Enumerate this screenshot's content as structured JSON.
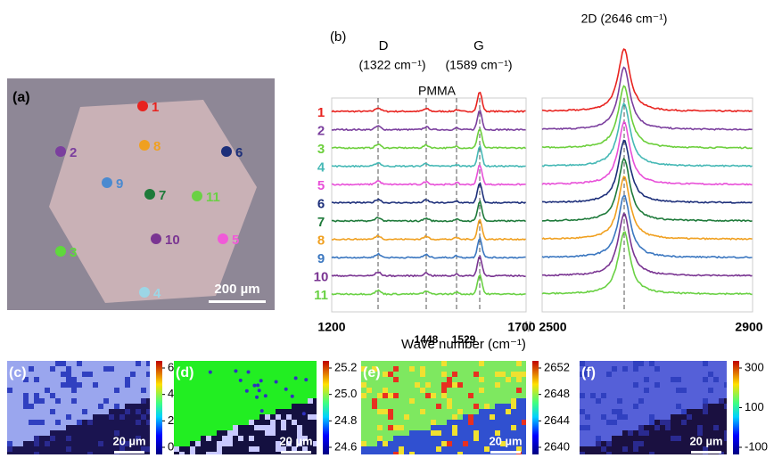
{
  "panel_a": {
    "label": "(a)",
    "scale_bar": "200 µm",
    "points": [
      {
        "label": "1",
        "color": "#e8231f"
      },
      {
        "label": "2",
        "color": "#7b3f9e"
      },
      {
        "label": "3",
        "color": "#5fd83c"
      },
      {
        "label": "4",
        "color": "#9cd6e6"
      },
      {
        "label": "5",
        "color": "#f05ad8"
      },
      {
        "label": "6",
        "color": "#1d2f7a"
      },
      {
        "label": "7",
        "color": "#1e7a3a"
      },
      {
        "label": "8",
        "color": "#f0a020"
      },
      {
        "label": "9",
        "color": "#4a8ad0"
      },
      {
        "label": "10",
        "color": "#7a3592"
      },
      {
        "label": "11",
        "color": "#6ad144"
      }
    ]
  },
  "panel_b": {
    "label": "(b)",
    "peak_d": {
      "name": "D",
      "position": "(1322 cm⁻¹)"
    },
    "peak_g": {
      "name": "G",
      "position": "(1589 cm⁻¹)"
    },
    "peak_2d": "2D (2646 cm⁻¹)",
    "pmma": "PMMA",
    "x_labels": [
      "1200",
      "1448",
      "1529",
      "1700",
      "2500",
      "2900"
    ],
    "x_title": "Wave number (cm⁻¹)",
    "traces": [
      {
        "label": "1",
        "color": "#e8231f"
      },
      {
        "label": "2",
        "color": "#7b3f9e"
      },
      {
        "label": "3",
        "color": "#6ccf3c"
      },
      {
        "label": "4",
        "color": "#45b8b5"
      },
      {
        "label": "5",
        "color": "#e84fd8"
      },
      {
        "label": "6",
        "color": "#1d2f7a"
      },
      {
        "label": "7",
        "color": "#1e7a3a"
      },
      {
        "label": "8",
        "color": "#f0a020"
      },
      {
        "label": "9",
        "color": "#3b77c0"
      },
      {
        "label": "10",
        "color": "#7a3592"
      },
      {
        "label": "11",
        "color": "#6ad144"
      }
    ]
  },
  "maps": [
    {
      "label": "(c)",
      "scale_bar": "20 µm",
      "ticks": [
        "6",
        "4",
        "2",
        "0"
      ],
      "top_color": "#9aa6ee",
      "low_color": "#1a1450"
    },
    {
      "label": "(d)",
      "scale_bar": "20 µm",
      "ticks": [
        "25.2",
        "25.0",
        "24.8",
        "24.6"
      ],
      "top_color": "#22ee22",
      "low_color": "#141040"
    },
    {
      "label": "(e)",
      "scale_bar": "20 µm",
      "ticks": [
        "2652",
        "2648",
        "2644",
        "2640"
      ],
      "top_color": "#7ee860",
      "low_color": "#3050d0"
    },
    {
      "label": "(f)",
      "scale_bar": "20 µm",
      "ticks": [
        "300",
        "100",
        "-100"
      ],
      "top_color": "#5560d8",
      "low_color": "#1a1040"
    }
  ]
}
